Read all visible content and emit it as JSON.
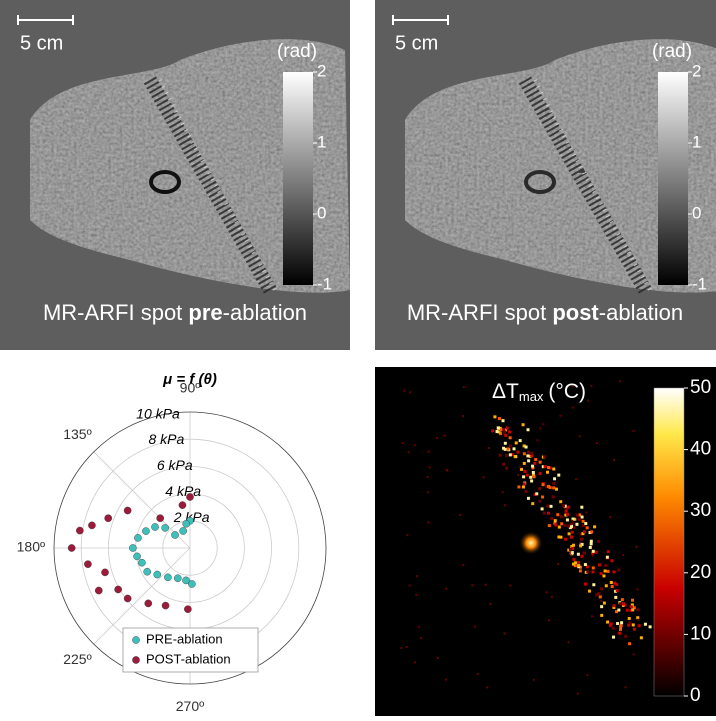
{
  "panels": [
    {
      "scale_bar": "5 cm",
      "colorbar": {
        "title": "(rad)",
        "lim": [
          -1,
          2
        ],
        "ticks": [
          -1,
          0,
          1,
          2
        ]
      },
      "caption": [
        "MR-ARFI spot ",
        "pre",
        "-ablation"
      ]
    },
    {
      "scale_bar": "5 cm",
      "colorbar": {
        "title": "(rad)",
        "lim": [
          -1,
          2
        ],
        "ticks": [
          -1,
          0,
          1,
          2
        ]
      },
      "caption": [
        "MR-ARFI spot ",
        "post",
        "-ablation"
      ]
    }
  ],
  "heatmap": {
    "title": "ΔT",
    "title_sub": "max",
    "title_unit": "(°C)",
    "colorbar": {
      "lim": [
        0,
        50
      ],
      "ticks": [
        0,
        10,
        20,
        30,
        40,
        50
      ]
    }
  },
  "chart_data": {
    "type": "polar",
    "title": "μ = f (θ)",
    "rlim": [
      0,
      10
    ],
    "rticks": [
      {
        "value": 2,
        "label": "2 kPa"
      },
      {
        "value": 4,
        "label": "4 kPa"
      },
      {
        "value": 6,
        "label": "6 kPa"
      },
      {
        "value": 8,
        "label": "8 kPa"
      },
      {
        "value": 10,
        "label": "10 kPa"
      }
    ],
    "thetaticks": [
      {
        "value": 90,
        "label": "90º"
      },
      {
        "value": 135,
        "label": "135º"
      },
      {
        "value": 180,
        "label": "180º"
      },
      {
        "value": 225,
        "label": "225º"
      },
      {
        "value": 270,
        "label": "270º"
      }
    ],
    "grid": true,
    "series": [
      {
        "name": "PRE-ablation",
        "color": "#3fbfb9",
        "theta": [
          90,
          99,
          112,
          139,
          141,
          149,
          159,
          169,
          180,
          189,
          197,
          209,
          219,
          233,
          248,
          263,
          273
        ],
        "r": [
          2.0,
          1.8,
          1.35,
          1.46,
          2.35,
          3.0,
          3.47,
          3.9,
          4.2,
          3.94,
          3.7,
          3.6,
          3.1,
          2.7,
          2.4,
          2.4,
          2.65
        ]
      },
      {
        "name": "POST-ablation",
        "color": "#9b1b3a",
        "theta": [
          90,
          100,
          135,
          149,
          160,
          167,
          171,
          180,
          189,
          196,
          205,
          210,
          219,
          233,
          247,
          268
        ],
        "r": [
          3.75,
          3.2,
          3.1,
          5.35,
          6.4,
          7.4,
          8.2,
          8.7,
          7.6,
          6.5,
          7.4,
          6.1,
          5.9,
          5.1,
          4.6,
          4.5
        ]
      }
    ],
    "legend": "lower center"
  }
}
